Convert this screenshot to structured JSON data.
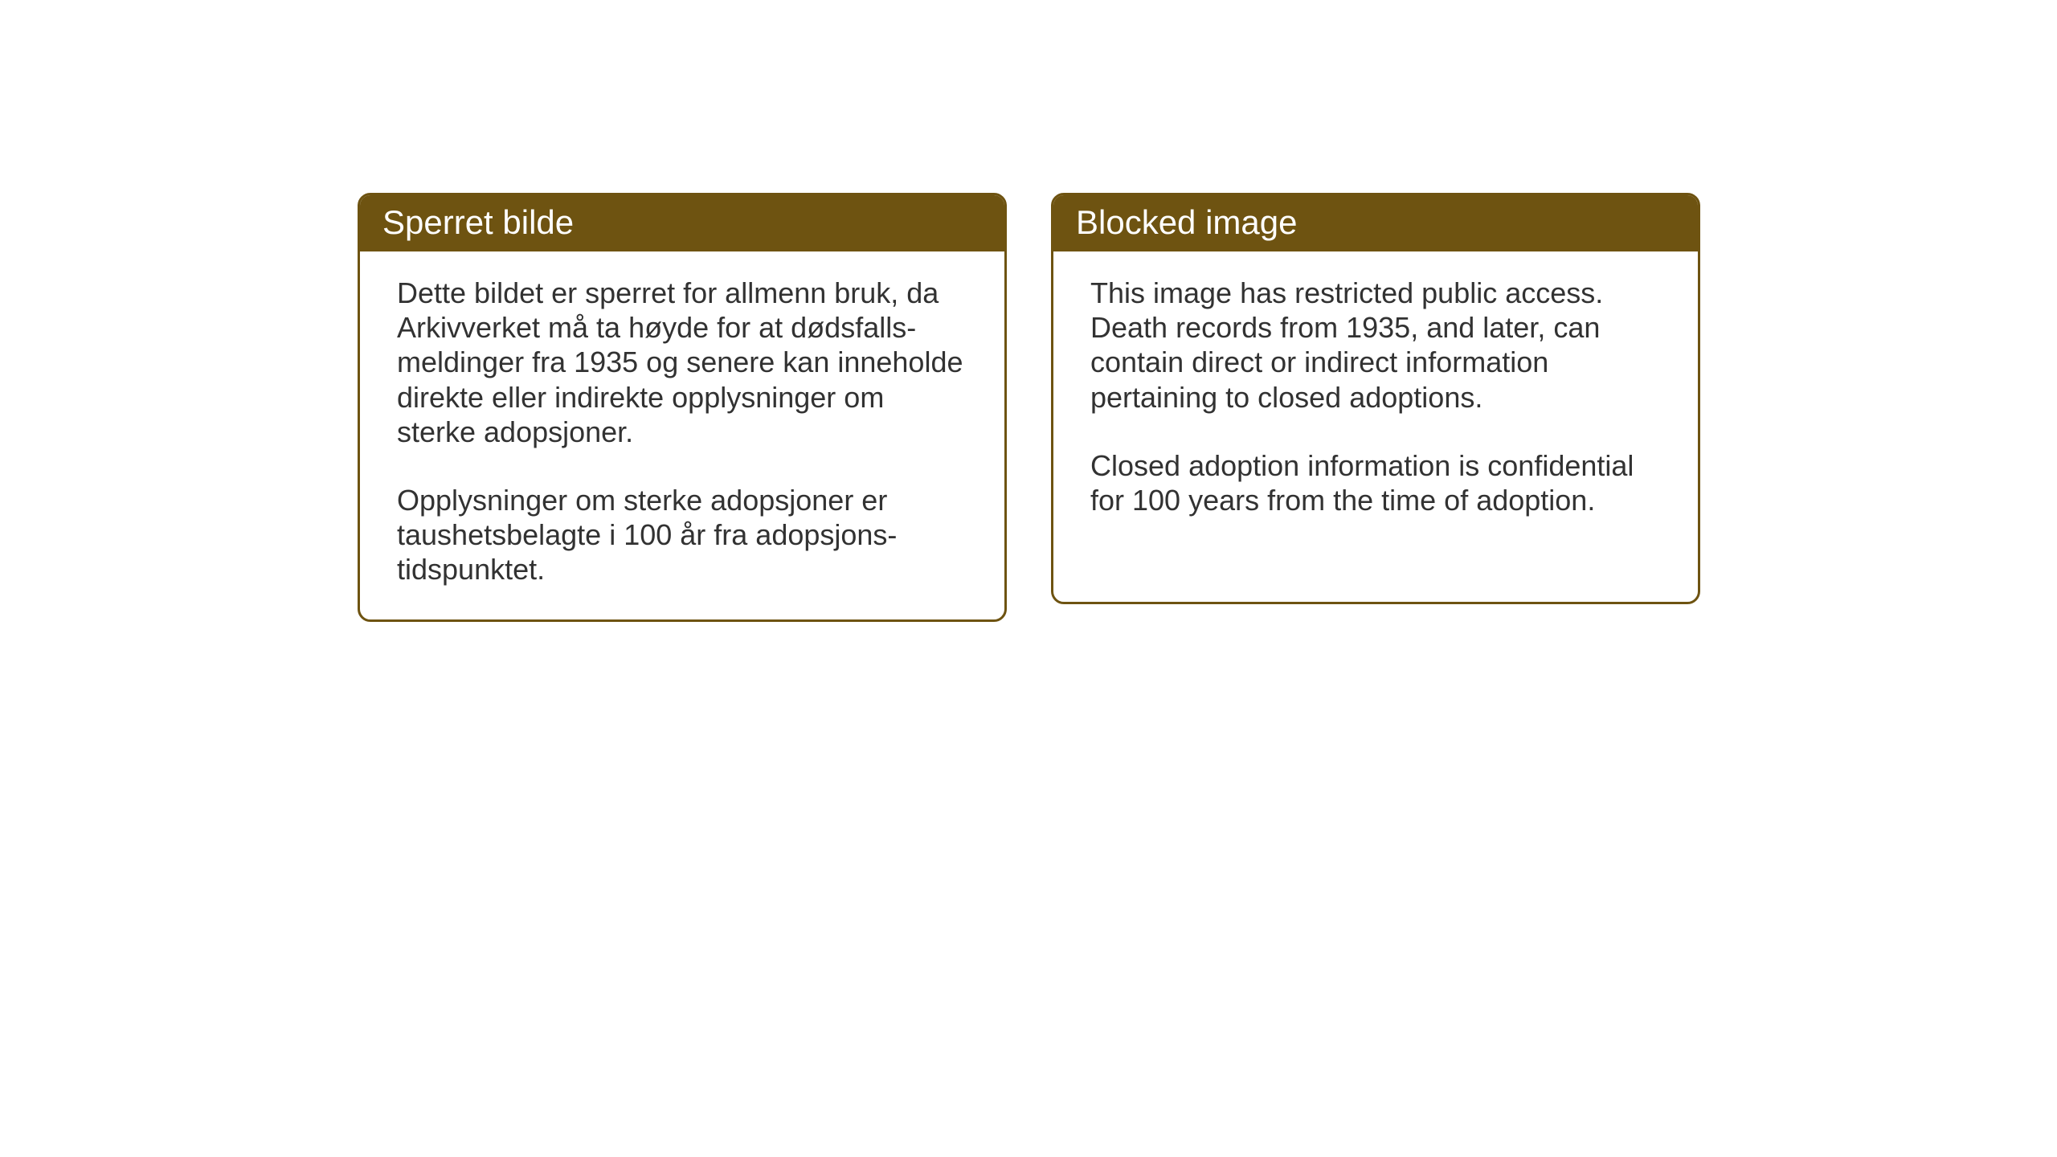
{
  "notices": {
    "norwegian": {
      "title": "Sperret bilde",
      "paragraph1": "Dette bildet er sperret for allmenn bruk, da Arkivverket må ta høyde for at dødsfalls-meldinger fra 1935 og senere kan inneholde direkte eller indirekte opplysninger om sterke adopsjoner.",
      "paragraph2": "Opplysninger om sterke adopsjoner er taushetsbelagte i 100 år fra adopsjons-tidspunktet."
    },
    "english": {
      "title": "Blocked image",
      "paragraph1": "This image has restricted public access. Death records from 1935, and later, can contain direct or indirect information pertaining to closed adoptions.",
      "paragraph2": "Closed adoption information is confidential for 100 years from the time of adoption."
    }
  },
  "styling": {
    "header_background_color": "#6e5311",
    "header_text_color": "#ffffff",
    "border_color": "#6e5311",
    "body_text_color": "#323232",
    "background_color": "#ffffff",
    "title_fontsize": 42,
    "body_fontsize": 36,
    "border_radius": 16,
    "border_width": 3
  }
}
